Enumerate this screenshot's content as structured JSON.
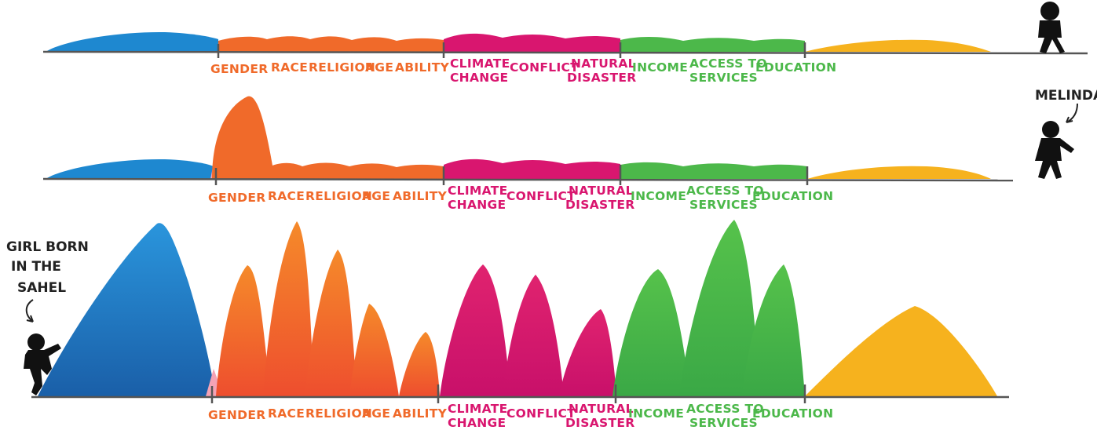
{
  "colors": {
    "blue": "#1e88d0",
    "orange": "#f06a2a",
    "magenta": "#d9166f",
    "green": "#4cb84a",
    "yellow": "#f6b21e",
    "line": "#555555",
    "figure": "#111111"
  },
  "labels": {
    "gender": "GENDER",
    "race": "RACE",
    "religion": "RELIGION",
    "age": "AGE",
    "ability": "ABILITY",
    "climate_1": "CLIMATE",
    "climate_2": "CHANGE",
    "conflict": "CONFLICT",
    "natural_1": "NATURAL",
    "natural_2": "DISASTER",
    "income": "INCOME",
    "access_1": "ACCESS TO",
    "access_2": "SERVICES",
    "education": "EDUCATION"
  },
  "annotations": {
    "melinda": "MELINDA",
    "girl_1": "GIRL BORN",
    "girl_2": "IN THE",
    "girl_3": "SAHEL"
  },
  "icons": [
    "person-walking-icon",
    "arrow-icon"
  ]
}
